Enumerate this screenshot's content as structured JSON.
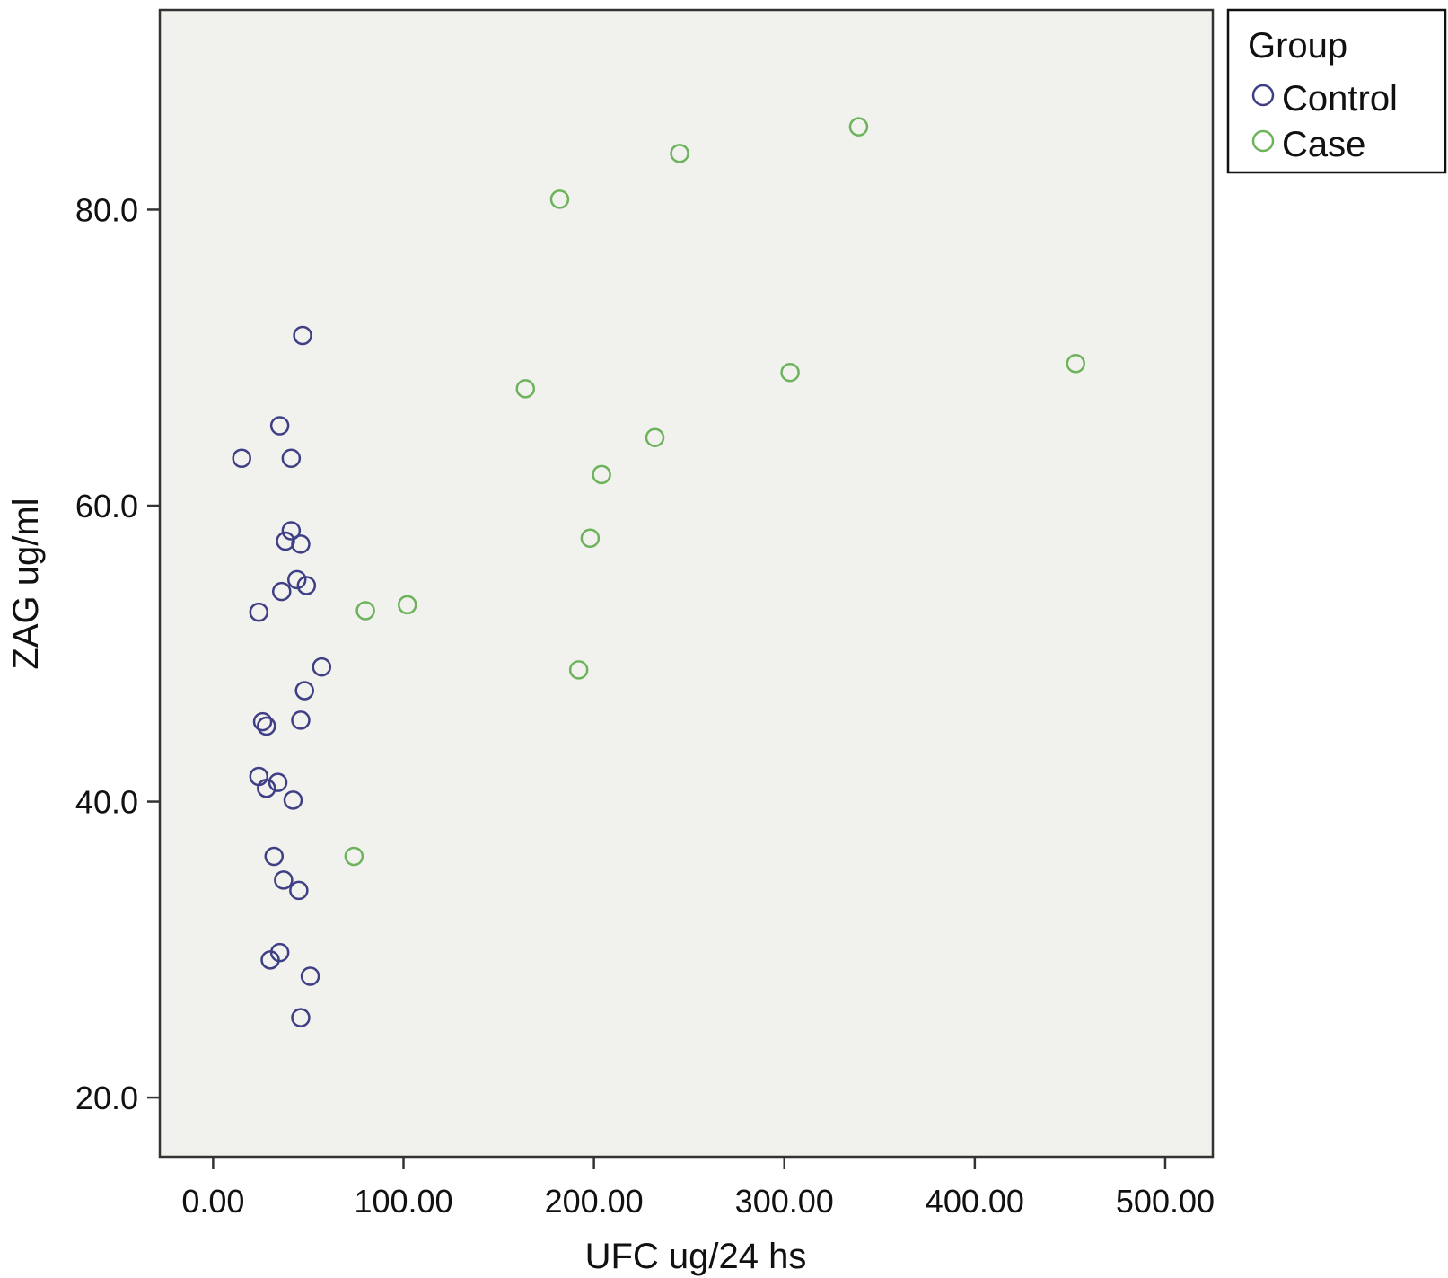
{
  "chart_data": {
    "type": "scatter",
    "xlabel": "UFC ug/24 hs",
    "ylabel": "ZAG ug/ml",
    "xlim": [
      -28,
      525
    ],
    "ylim": [
      16.0,
      93.5
    ],
    "xticks": [
      "0.00",
      "100.00",
      "200.00",
      "300.00",
      "400.00",
      "500.00"
    ],
    "xtick_values": [
      0,
      100,
      200,
      300,
      400,
      500
    ],
    "yticks": [
      "20.0",
      "40.0",
      "60.0",
      "80.0"
    ],
    "ytick_values": [
      20,
      40,
      60,
      80
    ],
    "grid": false,
    "legend": {
      "title": "Group",
      "placement": "outside-top-right"
    },
    "series": [
      {
        "name": "Control",
        "color": "#3f3f86",
        "points": [
          {
            "x": 47,
            "y": 71.5
          },
          {
            "x": 35,
            "y": 65.4
          },
          {
            "x": 15,
            "y": 63.2
          },
          {
            "x": 41,
            "y": 63.2
          },
          {
            "x": 41,
            "y": 58.3
          },
          {
            "x": 38,
            "y": 57.6
          },
          {
            "x": 46,
            "y": 57.4
          },
          {
            "x": 44,
            "y": 55.0
          },
          {
            "x": 49,
            "y": 54.6
          },
          {
            "x": 36,
            "y": 54.2
          },
          {
            "x": 24,
            "y": 52.8
          },
          {
            "x": 57,
            "y": 49.1
          },
          {
            "x": 48,
            "y": 47.5
          },
          {
            "x": 46,
            "y": 45.5
          },
          {
            "x": 26,
            "y": 45.4
          },
          {
            "x": 28,
            "y": 45.1
          },
          {
            "x": 24,
            "y": 41.7
          },
          {
            "x": 34,
            "y": 41.3
          },
          {
            "x": 28,
            "y": 40.9
          },
          {
            "x": 42,
            "y": 40.1
          },
          {
            "x": 32,
            "y": 36.3
          },
          {
            "x": 37,
            "y": 34.7
          },
          {
            "x": 45,
            "y": 34.0
          },
          {
            "x": 35,
            "y": 29.8
          },
          {
            "x": 30,
            "y": 29.3
          },
          {
            "x": 51,
            "y": 28.2
          },
          {
            "x": 46,
            "y": 25.4
          }
        ]
      },
      {
        "name": "Case",
        "color": "#6db35c",
        "points": [
          {
            "x": 339,
            "y": 85.6
          },
          {
            "x": 245,
            "y": 83.8
          },
          {
            "x": 182,
            "y": 80.7
          },
          {
            "x": 453,
            "y": 69.6
          },
          {
            "x": 303,
            "y": 69.0
          },
          {
            "x": 164,
            "y": 67.9
          },
          {
            "x": 232,
            "y": 64.6
          },
          {
            "x": 204,
            "y": 62.1
          },
          {
            "x": 198,
            "y": 57.8
          },
          {
            "x": 102,
            "y": 53.3
          },
          {
            "x": 80,
            "y": 52.9
          },
          {
            "x": 192,
            "y": 48.9
          },
          {
            "x": 74,
            "y": 36.3
          }
        ]
      }
    ]
  }
}
